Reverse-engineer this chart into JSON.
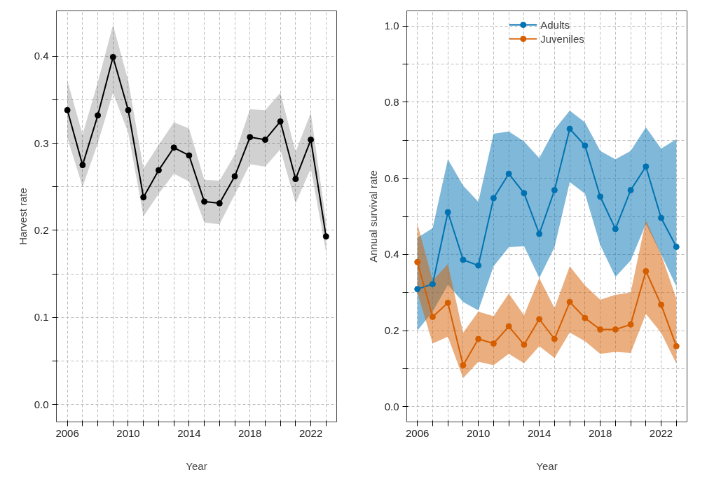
{
  "chart_data": [
    {
      "type": "line",
      "xlabel": "Year",
      "ylabel": "Harvest rate",
      "x": [
        2006,
        2007,
        2008,
        2009,
        2010,
        2011,
        2012,
        2013,
        2014,
        2015,
        2016,
        2017,
        2018,
        2019,
        2020,
        2021,
        2022,
        2023
      ],
      "series": [
        {
          "color": "#000000",
          "values": [
            0.338,
            0.275,
            0.332,
            0.399,
            0.338,
            0.238,
            0.269,
            0.295,
            0.286,
            0.233,
            0.231,
            0.262,
            0.307,
            0.304,
            0.325,
            0.259,
            0.304,
            0.193
          ],
          "lower": [
            0.306,
            0.25,
            0.3,
            0.358,
            0.312,
            0.216,
            0.242,
            0.265,
            0.256,
            0.209,
            0.207,
            0.241,
            0.276,
            0.273,
            0.293,
            0.231,
            0.271,
            0.175
          ],
          "upper": [
            0.372,
            0.31,
            0.37,
            0.436,
            0.372,
            0.271,
            0.298,
            0.324,
            0.317,
            0.258,
            0.257,
            0.287,
            0.339,
            0.338,
            0.358,
            0.29,
            0.335,
            0.21
          ]
        }
      ],
      "xlim": [
        2005.28,
        2023.7
      ],
      "ylim": [
        -0.02,
        0.452
      ],
      "xticks": [
        {
          "value": 2006,
          "label": "2006"
        },
        {
          "value": 2007,
          "label": null
        },
        {
          "value": 2008,
          "label": null
        },
        {
          "value": 2009,
          "label": null
        },
        {
          "value": 2010,
          "label": "2010"
        },
        {
          "value": 2011,
          "label": null
        },
        {
          "value": 2012,
          "label": null
        },
        {
          "value": 2013,
          "label": null
        },
        {
          "value": 2014,
          "label": "2014"
        },
        {
          "value": 2015,
          "label": null
        },
        {
          "value": 2016,
          "label": null
        },
        {
          "value": 2017,
          "label": null
        },
        {
          "value": 2018,
          "label": "2018"
        },
        {
          "value": 2019,
          "label": null
        },
        {
          "value": 2020,
          "label": null
        },
        {
          "value": 2021,
          "label": null
        },
        {
          "value": 2022,
          "label": "2022"
        },
        {
          "value": 2023,
          "label": null
        }
      ],
      "yticks": [
        {
          "value": 0,
          "label": "0.0"
        },
        {
          "value": 0.05,
          "label": null
        },
        0.1,
        {
          "value": 0.15,
          "label": null
        },
        0.2,
        {
          "value": 0.25,
          "label": null
        },
        0.3,
        {
          "value": 0.35,
          "label": null
        },
        0.4
      ],
      "grid": true,
      "marker": "circle",
      "line_style": "solid"
    },
    {
      "type": "line",
      "xlabel": "Year",
      "ylabel": "Annual survival rate",
      "x": [
        2006,
        2007,
        2008,
        2009,
        2010,
        2011,
        2012,
        2013,
        2014,
        2015,
        2016,
        2017,
        2018,
        2019,
        2020,
        2021,
        2022,
        2023
      ],
      "series": [
        {
          "name": "Adults",
          "color": "#0072b2",
          "values": [
            0.309,
            0.322,
            0.511,
            0.386,
            0.371,
            0.548,
            0.612,
            0.561,
            0.454,
            0.569,
            0.73,
            0.686,
            0.552,
            0.467,
            0.569,
            0.631,
            0.496,
            0.42
          ],
          "lower": [
            0.2,
            0.25,
            0.32,
            0.275,
            0.253,
            0.369,
            0.419,
            0.422,
            0.338,
            0.419,
            0.59,
            0.56,
            0.425,
            0.341,
            0.384,
            0.48,
            0.4,
            0.316
          ],
          "upper": [
            0.444,
            0.469,
            0.65,
            0.581,
            0.538,
            0.717,
            0.723,
            0.697,
            0.653,
            0.728,
            0.778,
            0.747,
            0.672,
            0.65,
            0.672,
            0.734,
            0.678,
            0.703
          ]
        },
        {
          "name": "Juveniles",
          "color": "#d55e00",
          "values": [
            0.38,
            0.236,
            0.273,
            0.109,
            0.178,
            0.166,
            0.211,
            0.163,
            0.23,
            0.178,
            0.275,
            0.233,
            0.203,
            0.203,
            0.216,
            0.356,
            0.268,
            0.159
          ],
          "lower": [
            0.3,
            0.166,
            0.184,
            0.075,
            0.118,
            0.109,
            0.139,
            0.114,
            0.159,
            0.128,
            0.195,
            0.172,
            0.139,
            0.144,
            0.141,
            0.244,
            0.194,
            0.113
          ],
          "upper": [
            0.481,
            0.331,
            0.375,
            0.194,
            0.25,
            0.238,
            0.297,
            0.24,
            0.338,
            0.259,
            0.369,
            0.319,
            0.281,
            0.294,
            0.3,
            0.49,
            0.4,
            0.284
          ]
        }
      ],
      "xlim": [
        2005.3,
        2023.7
      ],
      "ylim": [
        -0.04,
        1.04
      ],
      "xticks": [
        {
          "value": 2006,
          "label": "2006"
        },
        {
          "value": 2007,
          "label": null
        },
        {
          "value": 2008,
          "label": null
        },
        {
          "value": 2009,
          "label": null
        },
        {
          "value": 2010,
          "label": "2010"
        },
        {
          "value": 2011,
          "label": null
        },
        {
          "value": 2012,
          "label": null
        },
        {
          "value": 2013,
          "label": null
        },
        {
          "value": 2014,
          "label": "2014"
        },
        {
          "value": 2015,
          "label": null
        },
        {
          "value": 2016,
          "label": null
        },
        {
          "value": 2017,
          "label": null
        },
        {
          "value": 2018,
          "label": "2018"
        },
        {
          "value": 2019,
          "label": null
        },
        {
          "value": 2020,
          "label": null
        },
        {
          "value": 2021,
          "label": null
        },
        {
          "value": 2022,
          "label": "2022"
        },
        {
          "value": 2023,
          "label": null
        }
      ],
      "yticks": [
        {
          "value": 0,
          "label": "0.0"
        },
        {
          "value": 0.1,
          "label": null
        },
        0.2,
        {
          "value": 0.3,
          "label": null
        },
        0.4,
        {
          "value": 0.5,
          "label": null
        },
        0.6,
        {
          "value": 0.7,
          "label": null
        },
        0.8,
        {
          "value": 0.9,
          "label": null
        },
        {
          "value": 1,
          "label": "1.0"
        }
      ],
      "grid": true,
      "legend": "top",
      "marker": "circle",
      "line_style": "solid"
    }
  ]
}
